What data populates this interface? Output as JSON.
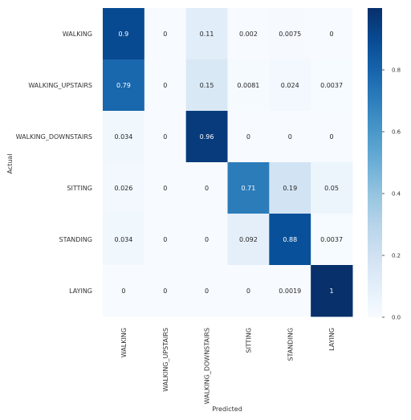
{
  "chart_data": {
    "type": "heatmap",
    "xlabel": "Predicted",
    "ylabel": "Actual",
    "x_categories": [
      "WALKING",
      "WALKING_UPSTAIRS",
      "WALKING_DOWNSTAIRS",
      "SITTING",
      "STANDING",
      "LAYING"
    ],
    "y_categories": [
      "WALKING",
      "WALKING_UPSTAIRS",
      "WALKING_DOWNSTAIRS",
      "SITTING",
      "STANDING",
      "LAYING"
    ],
    "values": [
      [
        0.9,
        0,
        0.11,
        0.002,
        0.0075,
        0
      ],
      [
        0.79,
        0,
        0.15,
        0.0081,
        0.024,
        0.0037
      ],
      [
        0.034,
        0,
        0.96,
        0,
        0,
        0
      ],
      [
        0.026,
        0,
        0,
        0.71,
        0.19,
        0.05
      ],
      [
        0.034,
        0,
        0,
        0.092,
        0.88,
        0.0037
      ],
      [
        0,
        0,
        0,
        0,
        0.0019,
        1
      ]
    ],
    "cell_labels": [
      [
        "0.9",
        "0",
        "0.11",
        "0.002",
        "0.0075",
        "0"
      ],
      [
        "0.79",
        "0",
        "0.15",
        "0.0081",
        "0.024",
        "0.0037"
      ],
      [
        "0.034",
        "0",
        "0.96",
        "0",
        "0",
        "0"
      ],
      [
        "0.026",
        "0",
        "0",
        "0.71",
        "0.19",
        "0.05"
      ],
      [
        "0.034",
        "0",
        "0",
        "0.092",
        "0.88",
        "0.0037"
      ],
      [
        "0",
        "0",
        "0",
        "0",
        "0.0019",
        "1"
      ]
    ],
    "colormap": "Blues",
    "colorbar": {
      "range": [
        0,
        1
      ],
      "ticks": [
        0,
        0.2,
        0.4,
        0.6,
        0.8
      ],
      "tick_labels": [
        "0.0",
        "0.2",
        "0.4",
        "0.6",
        "0.8"
      ]
    }
  }
}
